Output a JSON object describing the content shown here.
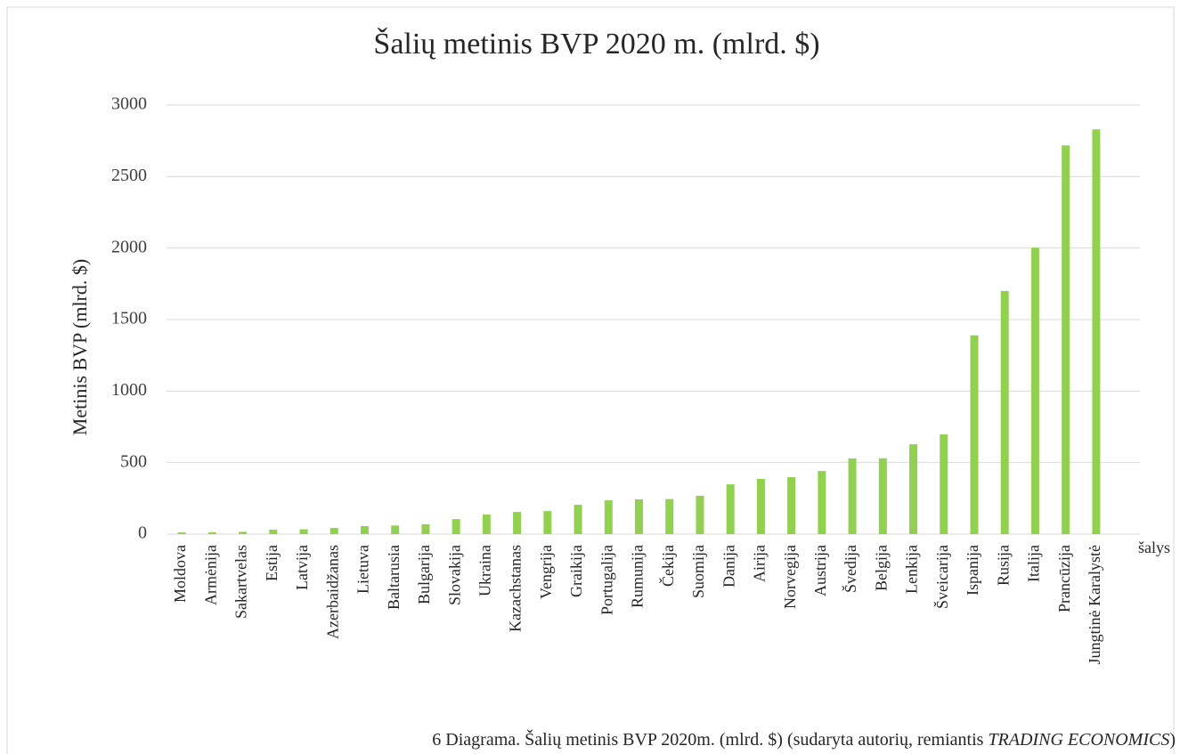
{
  "chart_data": {
    "type": "bar",
    "title": "Šalių metinis BVP 2020 m. (mlrd. $)",
    "y_label": "Metinis BVP (mlrd. $)",
    "x_label": "šalys",
    "categories": [
      "Moldova",
      "Armėnija",
      "Sakartvelas",
      "Estija",
      "Latvija",
      "Azerbaidžanas",
      "Lietuva",
      "Baltarusia",
      "Bulgarija",
      "Slovakija",
      "Ukraina",
      "Kazachstanas",
      "Vengrija",
      "Graikija",
      "Portugalija",
      "Rumunija",
      "Čekija",
      "Suomija",
      "Danija",
      "Airija",
      "Norvegija",
      "Austrija",
      "Švedija",
      "Belgija",
      "Lenkija",
      "Šveicarija",
      "Ispanija",
      "Rusija",
      "Italija",
      "Prancūzija",
      "Jungtinė Karalystė"
    ],
    "values": [
      12,
      13,
      16,
      31,
      34,
      43,
      56,
      60,
      69,
      105,
      137,
      155,
      161,
      205,
      236,
      243,
      245,
      268,
      348,
      386,
      398,
      441,
      529,
      530,
      628,
      697,
      1390,
      1700,
      2003,
      2718,
      2830
    ],
    "color": "#92d050",
    "ylim": [
      0,
      3000
    ],
    "yticks": [
      0,
      500,
      1000,
      1500,
      2000,
      2500,
      3000
    ],
    "grid": true,
    "caption": {
      "text": "6 Diagrama. Šalių metinis BVP 2020m. (mlrd. $) (sudaryta autorių, remiantis ",
      "source": "TRADING ECONOMICS",
      "end": ")"
    }
  }
}
